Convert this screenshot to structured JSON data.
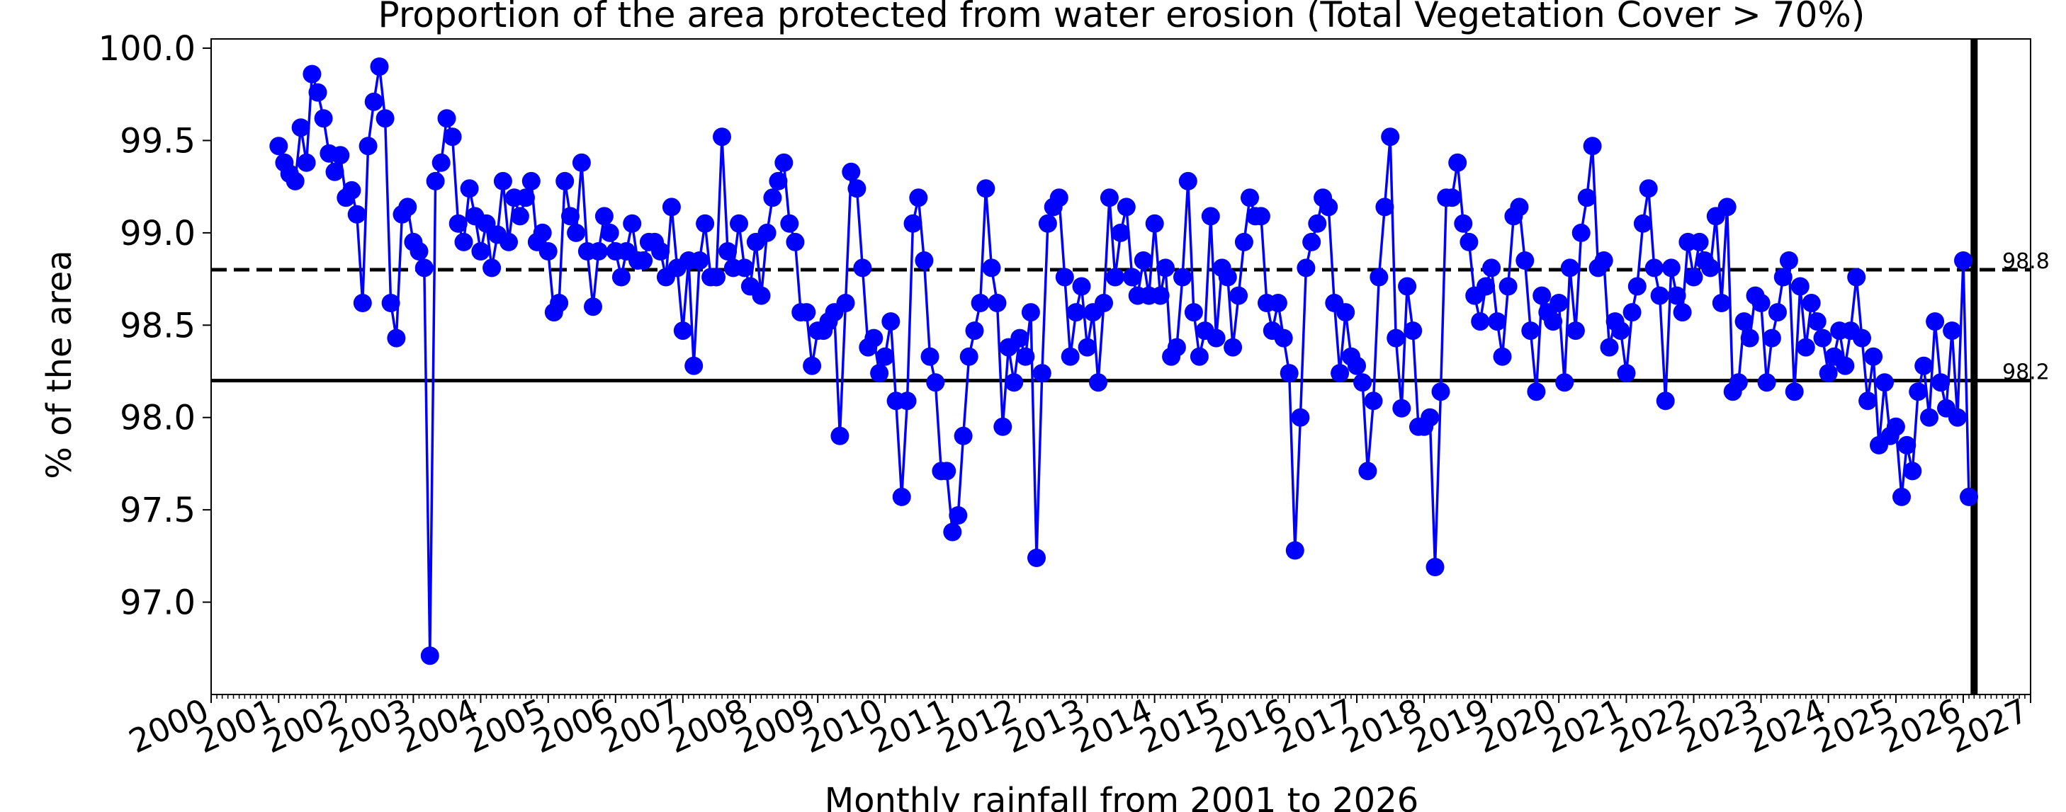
{
  "chart_data": {
    "type": "line",
    "title": "Proportion of the area protected from water erosion (Total Vegetation Cover > 70%)",
    "xlabel": "Monthly rainfall from 2001  to 2026",
    "ylabel": "% of the area",
    "xlim": [
      "2000-01-01",
      "2027-01-01"
    ],
    "ylim": [
      96.5,
      100.05
    ],
    "x_tick_labels": [
      "2000",
      "2001",
      "2002",
      "2003",
      "2004",
      "2005",
      "2006",
      "2007",
      "2008",
      "2009",
      "2010",
      "2011",
      "2012",
      "2013",
      "2014",
      "2015",
      "2016",
      "2017",
      "2018",
      "2019",
      "2020",
      "2021",
      "2022",
      "2023",
      "2024",
      "2025",
      "2026",
      "2027"
    ],
    "y_tick_values": [
      97.0,
      97.5,
      98.0,
      98.5,
      99.0,
      99.5,
      100.0
    ],
    "y_tick_labels": [
      "97.0",
      "97.5",
      "98.0",
      "98.5",
      "99.0",
      "99.5",
      "100.0"
    ],
    "grid": false,
    "legend": "none",
    "colors": {
      "series": "#0000ff",
      "reference": "#000000"
    },
    "reference_lines": [
      {
        "value": 98.8,
        "style": "dashed",
        "label": "98.8"
      },
      {
        "value": 98.2,
        "style": "solid",
        "label": "98.2"
      }
    ],
    "vertical_line": {
      "x": "2026-03-01",
      "style": "solid"
    },
    "series": [
      {
        "start": "2001-01",
        "frequency": "monthly",
        "values": [
          99.47,
          99.38,
          99.32,
          99.28,
          99.57,
          99.38,
          99.86,
          99.76,
          99.62,
          99.43,
          99.33,
          99.42,
          99.19,
          99.23,
          99.1,
          98.62,
          99.47,
          99.71,
          99.9,
          99.62,
          98.62,
          98.43,
          99.1,
          99.14,
          98.95,
          98.9,
          98.81,
          96.71,
          99.28,
          99.38,
          99.62,
          99.52,
          99.05,
          98.95,
          99.24,
          99.09,
          98.9,
          99.05,
          98.81,
          98.99,
          99.28,
          98.95,
          99.19,
          99.09,
          99.19,
          99.28,
          98.95,
          99.0,
          98.9,
          98.57,
          98.62,
          99.28,
          99.09,
          99.0,
          99.38,
          98.9,
          98.6,
          98.9,
          99.09,
          99.0,
          98.9,
          98.76,
          98.9,
          99.05,
          98.85,
          98.85,
          98.95,
          98.95,
          98.9,
          98.76,
          99.14,
          98.81,
          98.47,
          98.85,
          98.28,
          98.85,
          99.05,
          98.76,
          98.76,
          99.52,
          98.9,
          98.81,
          99.05,
          98.81,
          98.71,
          98.95,
          98.66,
          99.0,
          99.19,
          99.28,
          99.38,
          99.05,
          98.95,
          98.57,
          98.57,
          98.28,
          98.47,
          98.47,
          98.52,
          98.57,
          97.9,
          98.62,
          99.33,
          99.24,
          98.81,
          98.38,
          98.43,
          98.24,
          98.33,
          98.52,
          98.09,
          97.57,
          98.09,
          99.05,
          99.19,
          98.85,
          98.33,
          98.19,
          97.71,
          97.71,
          97.38,
          97.47,
          97.9,
          98.33,
          98.47,
          98.62,
          99.24,
          98.81,
          98.62,
          97.95,
          98.38,
          98.19,
          98.43,
          98.33,
          98.57,
          97.24,
          98.24,
          99.05,
          99.14,
          99.19,
          98.76,
          98.33,
          98.57,
          98.71,
          98.38,
          98.57,
          98.19,
          98.62,
          99.19,
          98.76,
          99.0,
          99.14,
          98.76,
          98.66,
          98.85,
          98.66,
          99.05,
          98.66,
          98.81,
          98.33,
          98.38,
          98.76,
          99.28,
          98.57,
          98.33,
          98.47,
          99.09,
          98.43,
          98.81,
          98.76,
          98.38,
          98.66,
          98.95,
          99.19,
          99.09,
          99.09,
          98.62,
          98.47,
          98.62,
          98.43,
          98.24,
          97.28,
          98.0,
          98.81,
          98.95,
          99.05,
          99.19,
          99.14,
          98.62,
          98.24,
          98.57,
          98.33,
          98.28,
          98.19,
          97.71,
          98.09,
          98.76,
          99.14,
          99.52,
          98.43,
          98.05,
          98.71,
          98.47,
          97.95,
          97.95,
          98.0,
          97.19,
          98.14,
          99.19,
          99.19,
          99.38,
          99.05,
          98.95,
          98.66,
          98.52,
          98.71,
          98.81,
          98.52,
          98.33,
          98.71,
          99.09,
          99.14,
          98.85,
          98.47,
          98.14,
          98.66,
          98.57,
          98.52,
          98.62,
          98.19,
          98.81,
          98.47,
          99.0,
          99.19,
          99.47,
          98.81,
          98.85,
          98.38,
          98.52,
          98.47,
          98.24,
          98.57,
          98.71,
          99.05,
          99.24,
          98.81,
          98.66,
          98.09,
          98.81,
          98.66,
          98.57,
          98.95,
          98.76,
          98.95,
          98.85,
          98.81,
          99.09,
          98.62,
          99.14,
          98.14,
          98.19,
          98.52,
          98.43,
          98.66,
          98.62,
          98.19,
          98.43,
          98.57,
          98.76,
          98.85,
          98.14,
          98.71,
          98.38,
          98.62,
          98.52,
          98.43,
          98.24,
          98.33,
          98.47,
          98.28,
          98.47,
          98.76,
          98.43,
          98.09,
          98.33,
          97.85,
          98.19,
          97.9,
          97.95,
          97.57,
          97.85,
          97.71,
          98.14,
          98.28,
          98.0,
          98.52,
          98.19,
          98.05,
          98.47,
          98.0,
          98.85,
          97.57
        ]
      }
    ]
  }
}
